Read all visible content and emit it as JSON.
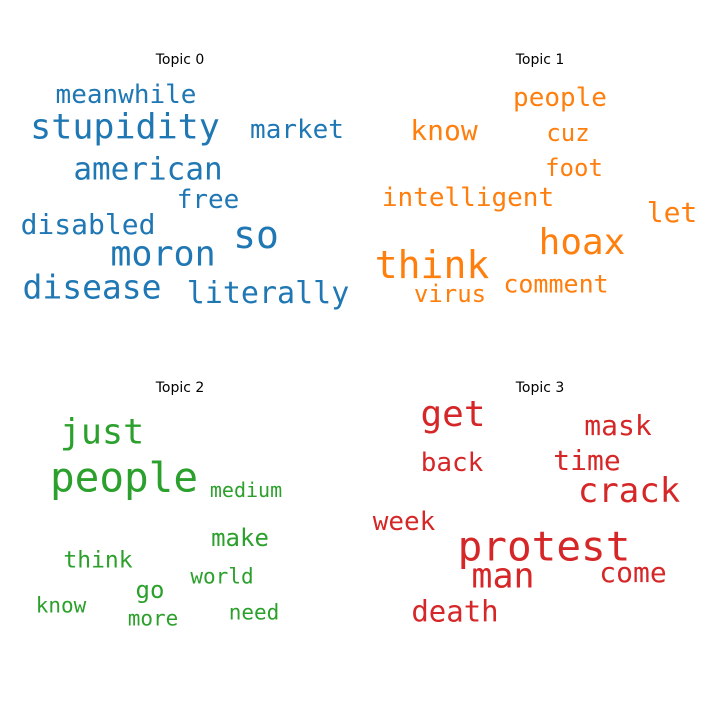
{
  "chart_data": [
    {
      "type": "wordcloud",
      "title": "Topic 0",
      "color": "#1f77b4",
      "words": [
        {
          "text": "meanwhile",
          "weight": 0.55
        },
        {
          "text": "stupidity",
          "weight": 0.72
        },
        {
          "text": "market",
          "weight": 0.55
        },
        {
          "text": "american",
          "weight": 0.65
        },
        {
          "text": "free",
          "weight": 0.55
        },
        {
          "text": "so",
          "weight": 0.8
        },
        {
          "text": "disabled",
          "weight": 0.58
        },
        {
          "text": "moron",
          "weight": 0.72
        },
        {
          "text": "disease",
          "weight": 0.68
        },
        {
          "text": "literally",
          "weight": 0.62
        }
      ]
    },
    {
      "type": "wordcloud",
      "title": "Topic 1",
      "color": "#ff7f0e",
      "words": [
        {
          "text": "people",
          "weight": 0.55
        },
        {
          "text": "know",
          "weight": 0.58
        },
        {
          "text": "cuz",
          "weight": 0.5
        },
        {
          "text": "foot",
          "weight": 0.5
        },
        {
          "text": "intelligent",
          "weight": 0.55
        },
        {
          "text": "let",
          "weight": 0.58
        },
        {
          "text": "think",
          "weight": 0.8
        },
        {
          "text": "hoax",
          "weight": 0.75
        },
        {
          "text": "comment",
          "weight": 0.52
        },
        {
          "text": "virus",
          "weight": 0.5
        }
      ]
    },
    {
      "type": "wordcloud",
      "title": "Topic 2",
      "color": "#2ca02c",
      "words": [
        {
          "text": "just",
          "weight": 0.72
        },
        {
          "text": "people",
          "weight": 0.85
        },
        {
          "text": "medium",
          "weight": 0.42
        },
        {
          "text": "make",
          "weight": 0.5
        },
        {
          "text": "think",
          "weight": 0.48
        },
        {
          "text": "go",
          "weight": 0.5
        },
        {
          "text": "world",
          "weight": 0.44
        },
        {
          "text": "know",
          "weight": 0.44
        },
        {
          "text": "more",
          "weight": 0.44
        },
        {
          "text": "need",
          "weight": 0.44
        }
      ]
    },
    {
      "type": "wordcloud",
      "title": "Topic 3",
      "color": "#d62728",
      "words": [
        {
          "text": "get",
          "weight": 0.75
        },
        {
          "text": "mask",
          "weight": 0.58
        },
        {
          "text": "back",
          "weight": 0.55
        },
        {
          "text": "time",
          "weight": 0.58
        },
        {
          "text": "crack",
          "weight": 0.7
        },
        {
          "text": "week",
          "weight": 0.55
        },
        {
          "text": "protest",
          "weight": 0.85
        },
        {
          "text": "man",
          "weight": 0.72
        },
        {
          "text": "come",
          "weight": 0.58
        },
        {
          "text": "death",
          "weight": 0.6
        }
      ]
    }
  ]
}
